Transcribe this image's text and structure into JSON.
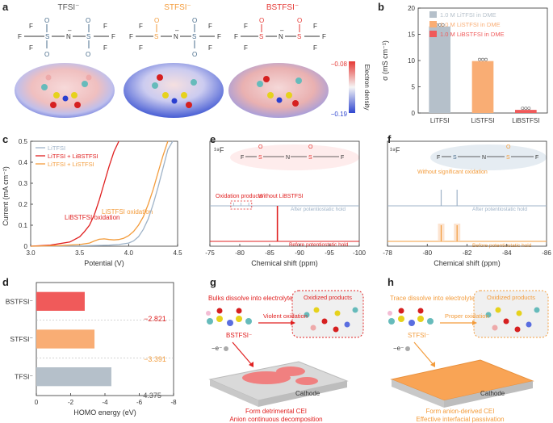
{
  "panels": {
    "a": {
      "letter": "a",
      "anions": [
        {
          "label": "TFSI⁻",
          "color": "#4a6d8c"
        },
        {
          "label": "STFSI⁻",
          "color": "#f39c3c"
        },
        {
          "label": "BSTFSI⁻",
          "color": "#e53935"
        }
      ],
      "colorbar": {
        "title": "Electron density",
        "max": "−0.08",
        "min": "−0.19"
      }
    },
    "b": {
      "letter": "b",
      "ylabel": "σ (mS cm⁻¹)"
    },
    "c": {
      "letter": "c",
      "ylabel": "Current (mA cm⁻²)",
      "annotations": {
        "libstfsi": "LiBSTFSI oxidation",
        "listfsi": "LiSTFSI oxidation"
      }
    },
    "d": {
      "letter": "d",
      "labels": [
        "−2.821",
        "−3.391",
        "−4.375"
      ]
    },
    "e": {
      "letter": "e",
      "nucleus": "¹⁹F",
      "texts": {
        "oxidation_products": "Oxidation products",
        "without": "Without LiBSTFSI",
        "after": "After potentiostatic hold",
        "before": "Before potentiostatic hold"
      }
    },
    "f": {
      "letter": "f",
      "nucleus": "¹⁹F",
      "texts": {
        "without_sig": "Without significant oxidation",
        "after": "After potentiostatic hold",
        "before": "Before potentiostatic hold"
      }
    },
    "g": {
      "letter": "g",
      "top": "Bulks dissolve into electrolyte",
      "products": "Oxidized products",
      "anion": "BSTFSI⁻",
      "process": "Violent oxidation",
      "electron": "−e⁻",
      "cathode": "Cathode",
      "caption1": "Form detrimental CEI",
      "caption2": "Anion continuous decomposition"
    },
    "h": {
      "letter": "h",
      "top": "Trace dissolve into electrolyte",
      "products": "Oxidized products",
      "anion": "STFSI⁻",
      "process": "Proper oxidation",
      "electron": "−e⁻",
      "cathode": "Cathode",
      "caption1": "Form anion-derived CEI",
      "caption2": "Effective interfacial passivation"
    }
  },
  "chart_data": [
    {
      "panel": "b",
      "type": "bar",
      "ylabel": "σ (mS cm⁻¹)",
      "categories": [
        "LiTFSI",
        "LiSTFSI",
        "LiBSTFSI"
      ],
      "values": [
        16.5,
        9.9,
        0.6
      ],
      "colors": [
        "#b5c0ca",
        "#f9ad74",
        "#f05a5a"
      ],
      "legend": [
        "1.0 M LiTFSI in DME",
        "1.0 M LiSTFSI in DME",
        "1.0 M LiBSTFSI in DME"
      ],
      "ylim": [
        0,
        20
      ],
      "yticks": [
        0,
        5,
        10,
        15,
        20
      ]
    },
    {
      "panel": "c",
      "type": "line",
      "xlabel": "Potential (V)",
      "ylabel": "Current (mA cm⁻²)",
      "xlim": [
        3.0,
        4.5
      ],
      "ylim": [
        0,
        0.5
      ],
      "xticks": [
        3.0,
        3.5,
        4.0,
        4.5
      ],
      "yticks": [
        0,
        0.1,
        0.2,
        0.3,
        0.4,
        0.5
      ],
      "series": [
        {
          "name": "LiTFSI",
          "color": "#9fb3c8",
          "x": [
            3.0,
            3.5,
            3.8,
            3.9,
            4.0,
            4.05,
            4.1,
            4.15,
            4.2,
            4.25,
            4.3,
            4.35,
            4.4,
            4.45
          ],
          "y": [
            0.0,
            0.002,
            0.005,
            0.008,
            0.015,
            0.025,
            0.045,
            0.08,
            0.13,
            0.2,
            0.28,
            0.37,
            0.46,
            0.5
          ]
        },
        {
          "name": "LiTFSI + LiBSTFSI",
          "color": "#e02020",
          "x": [
            3.0,
            3.2,
            3.4,
            3.5,
            3.55,
            3.6,
            3.65,
            3.7,
            3.75,
            3.8,
            3.85,
            3.9
          ],
          "y": [
            0.0,
            0.005,
            0.02,
            0.045,
            0.07,
            0.1,
            0.15,
            0.22,
            0.3,
            0.38,
            0.45,
            0.5
          ]
        },
        {
          "name": "LiTFSI + LiSTFSI",
          "color": "#f39c3c",
          "x": [
            3.0,
            3.3,
            3.5,
            3.6,
            3.65,
            3.7,
            3.75,
            3.8,
            3.85,
            3.9,
            3.95,
            4.0,
            4.05,
            4.1,
            4.15,
            4.2,
            4.25,
            4.3,
            4.35,
            4.4
          ],
          "y": [
            0.0,
            0.003,
            0.008,
            0.015,
            0.025,
            0.033,
            0.035,
            0.032,
            0.03,
            0.032,
            0.038,
            0.05,
            0.07,
            0.1,
            0.14,
            0.2,
            0.27,
            0.35,
            0.43,
            0.5
          ]
        }
      ]
    },
    {
      "panel": "d",
      "type": "bar",
      "orientation": "horizontal",
      "xlabel": "HOMO energy (eV)",
      "categories": [
        "BSTFSI⁻",
        "STFSI⁻",
        "TFSI⁻"
      ],
      "values": [
        -2.821,
        -3.391,
        -4.375
      ],
      "colors": [
        "#f05a5a",
        "#f9ad74",
        "#b5c0ca"
      ],
      "xlim": [
        0,
        -8
      ],
      "xticks": [
        0,
        -2,
        -4,
        -6,
        -8
      ]
    },
    {
      "panel": "e",
      "type": "line",
      "xlabel": "Chemical shift (ppm)",
      "xlim": [
        -75,
        -100
      ],
      "xticks": [
        -75,
        -80,
        -85,
        -90,
        -95,
        -100
      ],
      "series": [
        {
          "name": "After potentiostatic hold",
          "color": "#9fb3c8",
          "peaks": [
            -79,
            -80.2,
            -81.5
          ]
        },
        {
          "name": "Before potentiostatic hold",
          "color": "#e02020",
          "peaks": [
            -86.3
          ]
        }
      ]
    },
    {
      "panel": "f",
      "type": "line",
      "xlabel": "Chemical shift (ppm)",
      "xlim": [
        -78,
        -86
      ],
      "xticks": [
        -78,
        -80,
        -82,
        -84,
        -86
      ],
      "series": [
        {
          "name": "After potentiostatic hold",
          "color": "#9fb3c8",
          "peaks": [
            -80.7,
            -81.5
          ]
        },
        {
          "name": "Before potentiostatic hold",
          "color": "#f39c3c",
          "peaks": [
            -80.7,
            -81.5
          ]
        }
      ]
    }
  ]
}
